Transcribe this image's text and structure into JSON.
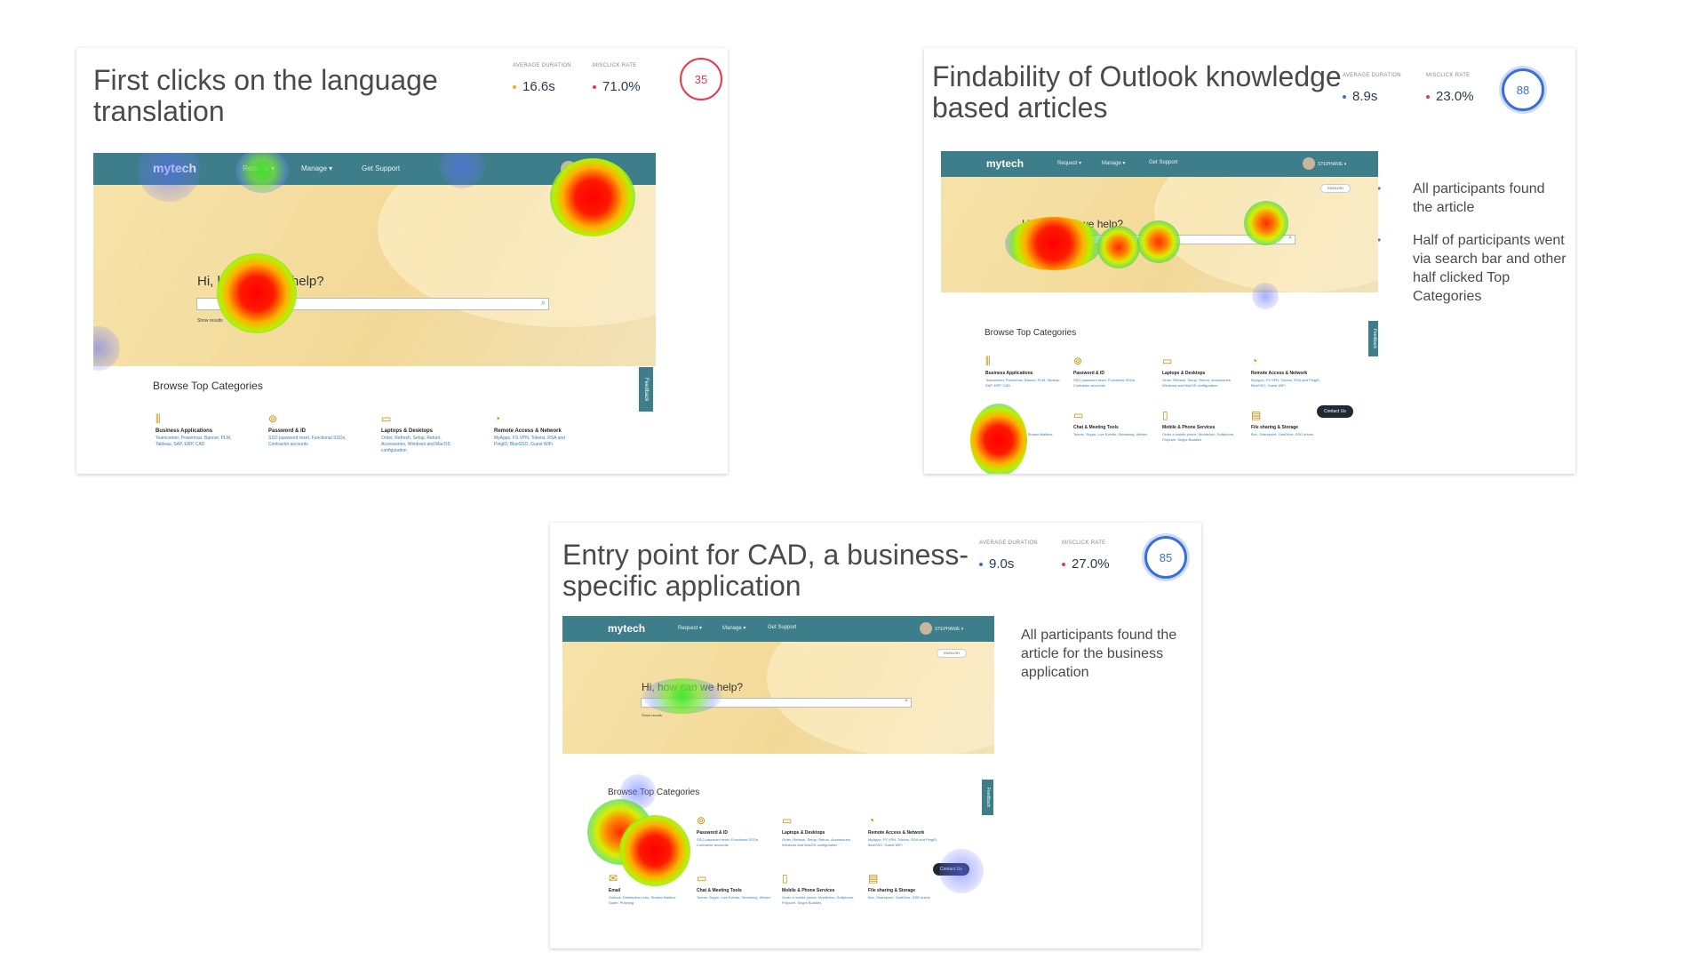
{
  "metric_labels": {
    "duration": "AVERAGE DURATION",
    "misclick": "MISCLICK RATE"
  },
  "colors": {
    "duration_dot_card1": "#f5a623",
    "duration_dot": "#3a6fd8",
    "misclick_dot": "#e8384f",
    "score_low": "#e8384f",
    "score_high": "#3a6fd8",
    "nav": "#3e7e8a"
  },
  "cards": [
    {
      "title_line1": "First clicks on the language",
      "title_line2": "translation",
      "avg_duration": "16.6s",
      "misclick_rate": "71.0%",
      "score": "35"
    },
    {
      "title_line1": "Findability of Outlook knowledge",
      "title_line2": "based articles",
      "avg_duration": "8.9s",
      "misclick_rate": "23.0%",
      "score": "88",
      "notes": [
        "All participants found the article",
        "Half of participants went via search bar and other half clicked Top Categories"
      ]
    },
    {
      "title_line1": "Entry point for CAD, a business-",
      "title_line2": "specific application",
      "avg_duration": "9.0s",
      "misclick_rate": "27.0%",
      "score": "85",
      "notes": [
        "All participants found the article for the business application"
      ]
    }
  ],
  "site": {
    "logo": "mytech",
    "nav": [
      "Request",
      "Manage",
      "Get Support"
    ],
    "user": "STEPHANIE",
    "hero": "Hi, how can we help?",
    "show_results": "Show results",
    "language": "ENGLISH",
    "browse": "Browse Top Categories",
    "feedback": "Feedback",
    "contact": "Contact Us",
    "categories": [
      {
        "icon": "business-apps-icon",
        "name": "Business Applications",
        "desc": "Teamcenter, Powermax, Banner, PLM, Tableau, SAP, ERP, CAD"
      },
      {
        "icon": "password-id-icon",
        "name": "Password & ID",
        "desc": "SSO password reset, Functional SSOs, Contractor accounts"
      },
      {
        "icon": "laptop-icon",
        "name": "Laptops & Desktops",
        "desc": "Order, Refresh, Setup, Return, Accessories, Windows and MacOS configuration"
      },
      {
        "icon": "remote-access-icon",
        "name": "Remote Access & Network",
        "desc": "MyApps, FS VPN, Tokens, RSA and PingID, BlueSSO, Guest WiFi"
      },
      {
        "icon": "mail-icon",
        "name": "Email",
        "desc": "Outlook, Distribution Lists, Shared Mailbox, Spam, Phishing"
      },
      {
        "icon": "chat-icon",
        "name": "Chat & Meeting Tools",
        "desc": "Teams, Skype, Live Events, Streaming, Webex"
      },
      {
        "icon": "mobile-phone-icon",
        "name": "Mobile & Phone Services",
        "desc": "Order a mobile phone, MobileIron, Softphone, Polycom, Skype Buddies"
      },
      {
        "icon": "file-sharing-icon",
        "name": "File sharing & Storage",
        "desc": "Box, Sharepoint, OneDrive, SSD drives"
      }
    ]
  }
}
